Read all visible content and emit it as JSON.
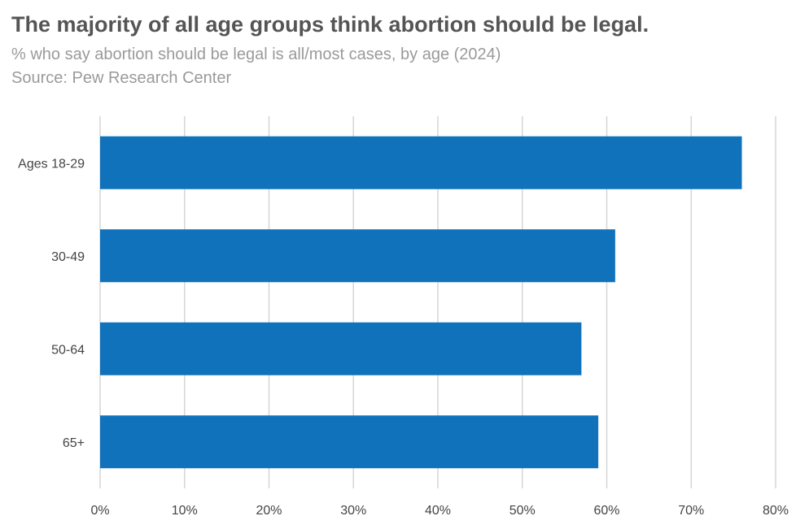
{
  "chart_data": {
    "type": "bar",
    "orientation": "horizontal",
    "title": "The majority of all age groups think abortion should be legal.",
    "subtitle": "% who say abortion should be legal is all/most cases, by age (2024)",
    "source": "Source: Pew Research Center",
    "categories": [
      "Ages 18-29",
      "30-49",
      "50-64",
      "65+"
    ],
    "values": [
      76,
      61,
      57,
      59
    ],
    "xlim": [
      0,
      80
    ],
    "xticks": [
      0,
      10,
      20,
      30,
      40,
      50,
      60,
      70,
      80
    ],
    "xtick_labels": [
      "0%",
      "10%",
      "20%",
      "30%",
      "40%",
      "50%",
      "60%",
      "70%",
      "80%"
    ],
    "grid": "vertical",
    "bar_color": "#1172bc",
    "grid_color": "#d6d6d6"
  }
}
